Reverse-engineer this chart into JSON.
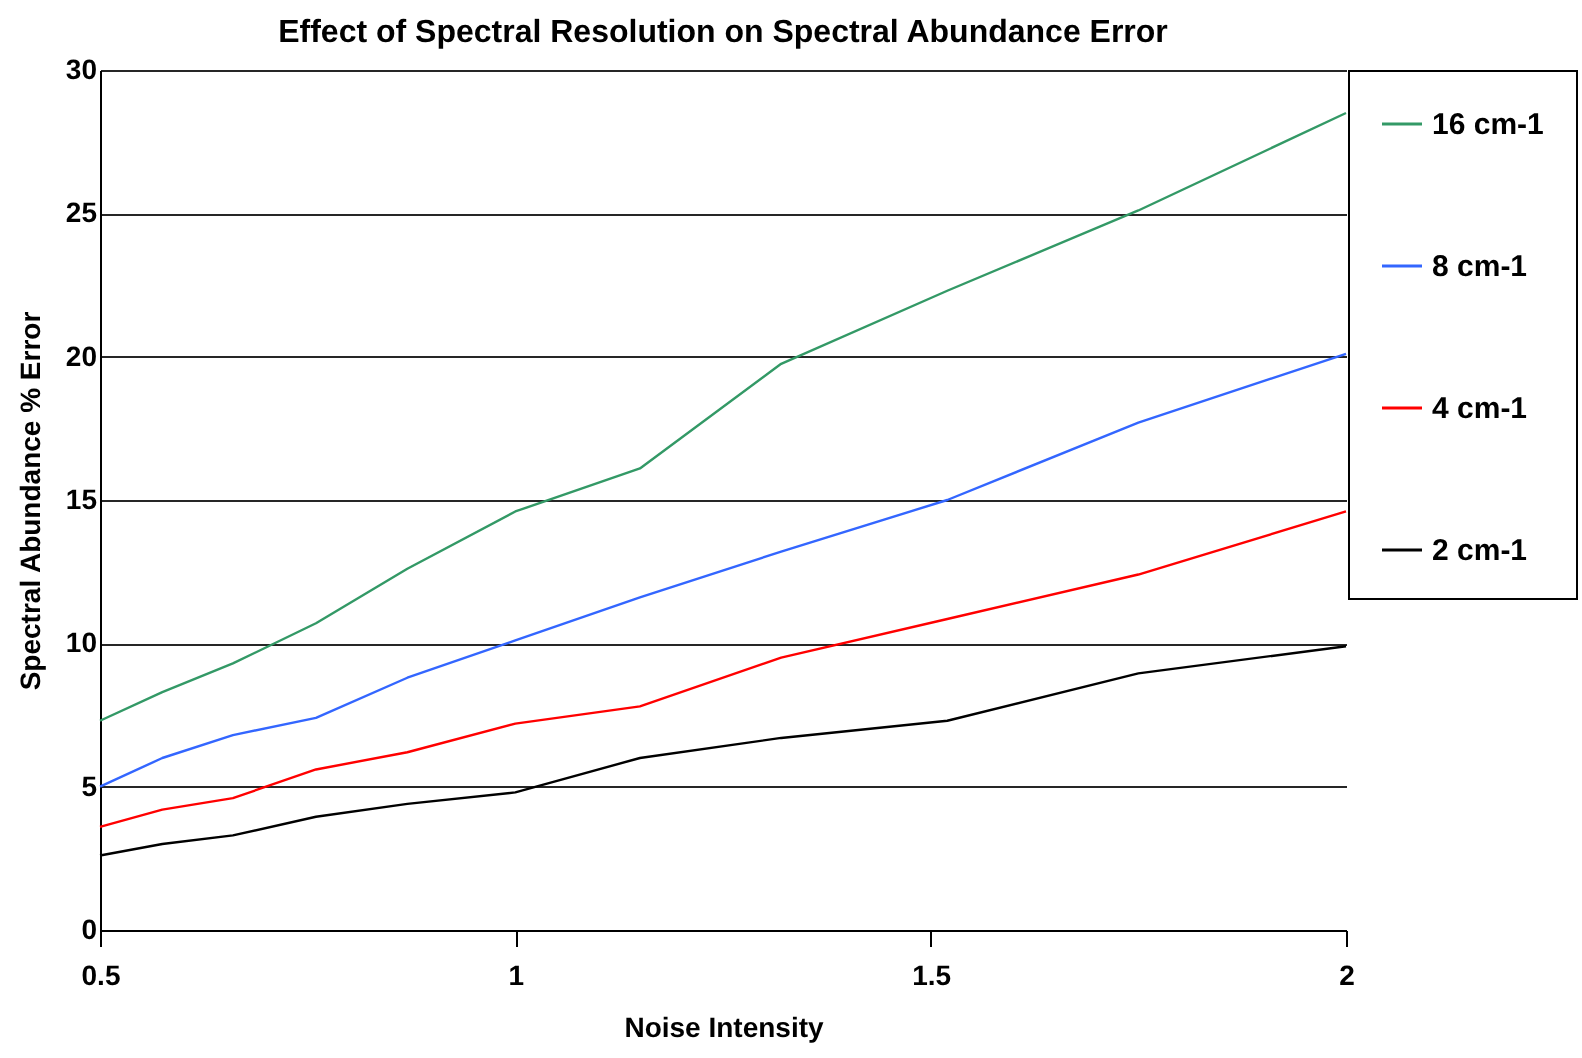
{
  "chart_data": {
    "type": "line",
    "title": "Effect of Spectral Resolution on Spectral Abundance Error",
    "xlabel": "Noise Intensity",
    "ylabel": "Spectral Abundance % Error",
    "x": [
      0.5,
      0.575,
      0.66,
      0.76,
      0.87,
      1.0,
      1.15,
      1.32,
      1.52,
      1.75,
      2.0
    ],
    "series": [
      {
        "name": "16 cm-1",
        "color": "#339966",
        "values": [
          7.3,
          8.3,
          9.3,
          10.7,
          12.6,
          14.6,
          16.1,
          19.75,
          22.3,
          25.1,
          28.5
        ]
      },
      {
        "name": "8 cm-1",
        "color": "#3366ff",
        "values": [
          5.0,
          6.0,
          6.8,
          7.4,
          8.8,
          10.1,
          11.6,
          13.2,
          15.0,
          17.7,
          20.1
        ]
      },
      {
        "name": "4 cm-1",
        "color": "#ff0000",
        "values": [
          3.6,
          4.2,
          4.6,
          5.6,
          6.2,
          7.2,
          7.8,
          9.5,
          10.85,
          12.4,
          14.6
        ]
      },
      {
        "name": "2 cm-1",
        "color": "#000000",
        "values": [
          2.6,
          3.0,
          3.3,
          3.95,
          4.4,
          4.8,
          6.0,
          6.7,
          7.3,
          8.95,
          9.9
        ]
      }
    ],
    "xlim": [
      0.5,
      2
    ],
    "xticks": [
      0.5,
      1,
      1.5,
      2
    ],
    "ylim": [
      0,
      30
    ],
    "yticks": [
      0,
      5,
      10,
      15,
      20,
      25,
      30
    ],
    "grid": "y",
    "legend": "right",
    "marker": "none",
    "line_style": "solid"
  }
}
